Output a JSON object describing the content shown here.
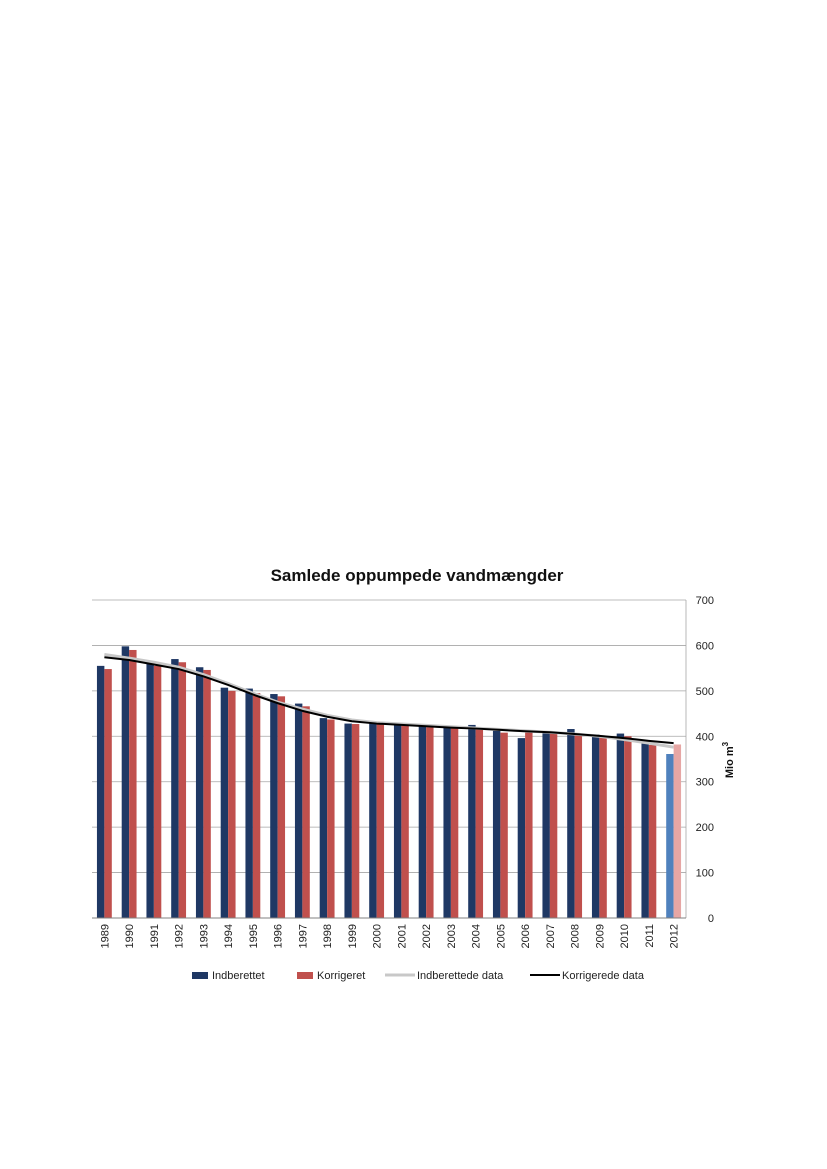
{
  "chart_data": {
    "type": "bar",
    "title": "Samlede oppumpede vandmængder",
    "xlabel": "",
    "ylabel": "Mio m",
    "ylabel_sup": "3",
    "y_axis_side": "right",
    "ylim": [
      0,
      700
    ],
    "yticks": [
      0,
      100,
      200,
      300,
      400,
      500,
      600,
      700
    ],
    "grid": true,
    "legend_position": "bottom",
    "categories": [
      "1989",
      "1990",
      "1991",
      "1992",
      "1993",
      "1994",
      "1995",
      "1996",
      "1997",
      "1998",
      "1999",
      "2000",
      "2001",
      "2002",
      "2003",
      "2004",
      "2005",
      "2006",
      "2007",
      "2008",
      "2009",
      "2010",
      "2011",
      "2012"
    ],
    "series": [
      {
        "name": "Indberettet",
        "kind": "bar",
        "color": "#1f3864",
        "values": [
          555,
          598,
          560,
          570,
          552,
          507,
          505,
          493,
          472,
          440,
          428,
          432,
          428,
          425,
          420,
          425,
          412,
          396,
          410,
          416,
          404,
          406,
          384,
          361
        ]
      },
      {
        "name": "Korrigeret",
        "kind": "bar",
        "color": "#c0504d",
        "values": [
          548,
          590,
          555,
          563,
          546,
          500,
          495,
          488,
          466,
          437,
          427,
          428,
          424,
          420,
          418,
          415,
          408,
          408,
          407,
          405,
          400,
          400,
          381,
          382
        ]
      },
      {
        "name": "Indberettede data",
        "kind": "line",
        "color": "#c8c8c8",
        "values": [
          580,
          572,
          563,
          552,
          536,
          516,
          495,
          475,
          460,
          446,
          436,
          430,
          427,
          424,
          421,
          418,
          415,
          412,
          409,
          405,
          400,
          393,
          385,
          376
        ]
      },
      {
        "name": "Korrigerede data",
        "kind": "line",
        "color": "#000000",
        "values": [
          574,
          568,
          558,
          548,
          532,
          513,
          492,
          473,
          456,
          443,
          433,
          428,
          425,
          422,
          419,
          417,
          414,
          411,
          409,
          405,
          401,
          396,
          390,
          385
        ]
      }
    ]
  }
}
